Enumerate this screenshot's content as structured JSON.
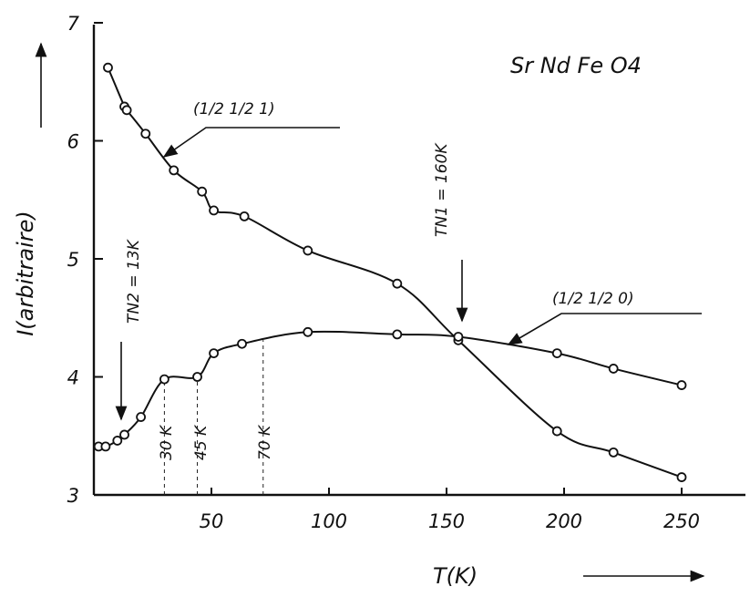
{
  "chart_data": {
    "type": "scatter",
    "title": "Sr Nd Fe O4",
    "xlabel": "T(K)",
    "ylabel": "I(arbitraire)",
    "xlim": [
      0,
      285
    ],
    "ylim": [
      3,
      7
    ],
    "x_ticks": [
      50,
      100,
      150,
      200,
      250
    ],
    "y_ticks": [
      3,
      4,
      5,
      6,
      7
    ],
    "grid": false,
    "series": [
      {
        "name": "(1/2 1/2 1)",
        "x": [
          6,
          13,
          14,
          22,
          34,
          46,
          51,
          64,
          91,
          129,
          155,
          197,
          221,
          250
        ],
        "y": [
          6.62,
          6.29,
          6.26,
          6.06,
          5.75,
          5.57,
          5.41,
          5.36,
          5.07,
          4.79,
          4.31,
          3.54,
          3.36,
          3.15
        ]
      },
      {
        "name": "(1/2 1/2 0)",
        "x": [
          2,
          5,
          10,
          13,
          20,
          30,
          44,
          51,
          63,
          91,
          129,
          155,
          197,
          221,
          250
        ],
        "y": [
          3.41,
          3.41,
          3.46,
          3.51,
          3.66,
          3.98,
          4.0,
          4.2,
          4.28,
          4.38,
          4.36,
          4.34,
          4.2,
          4.07,
          3.93
        ]
      }
    ],
    "annotations": [
      {
        "text": "TN1 = 160K",
        "x": 155
      },
      {
        "text": "TN2 = 13K",
        "x": 13
      },
      {
        "text": "30 K",
        "x": 30
      },
      {
        "text": "45 K",
        "x": 45
      },
      {
        "text": "70 K",
        "x": 70
      }
    ]
  }
}
